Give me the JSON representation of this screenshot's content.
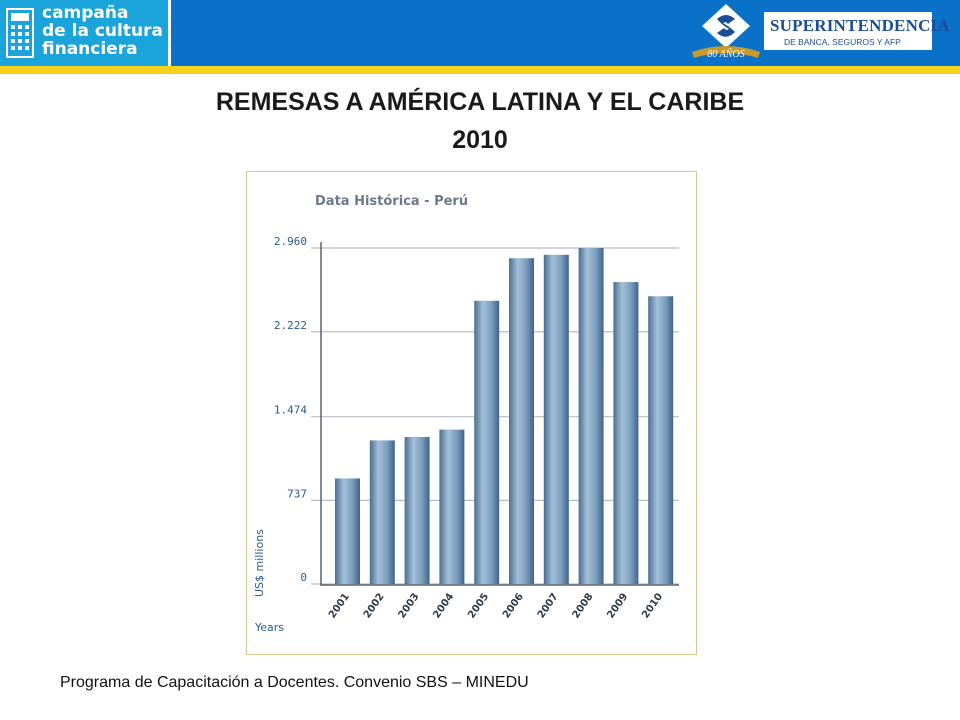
{
  "header": {
    "campaign_lines": [
      "campaña",
      "de la cultura",
      "financiera"
    ],
    "sbs_name": "SUPERINTENDENCIA",
    "sbs_subtitle": "DE BANCA, SEGUROS Y AFP",
    "sbs_anniversary": "80 AÑOS",
    "colors": {
      "bar": "#0a71c9",
      "stripe": "#f7d21c",
      "campaign": "#1aa4d9"
    },
    "icons": {
      "campaign": "calculator-icon",
      "sbs": "sbs-emblem-icon"
    }
  },
  "slide": {
    "title_line1": "REMESAS A AMÉRICA LATINA Y EL CARIBE",
    "title_line2": "2010"
  },
  "chart_data": {
    "type": "bar",
    "title": "Data Histórica - Perú",
    "xlabel": "Years",
    "ylabel": "US$ millions",
    "categories": [
      "2001",
      "2002",
      "2003",
      "2004",
      "2005",
      "2006",
      "2007",
      "2008",
      "2009",
      "2010"
    ],
    "values": [
      930,
      1265,
      1295,
      1360,
      2495,
      2870,
      2900,
      2960,
      2660,
      2535
    ],
    "ylim": [
      0,
      2960
    ],
    "yticks": [
      0,
      737,
      1474,
      2222,
      2960
    ],
    "ytick_labels": [
      "0",
      "737",
      "1.474",
      "2.222",
      "2.960"
    ],
    "grid": true,
    "legend": "none",
    "bar_color": "#7da0bf"
  },
  "footer": {
    "text": "Programa de Capacitación a Docentes. Convenio SBS – MINEDU"
  }
}
